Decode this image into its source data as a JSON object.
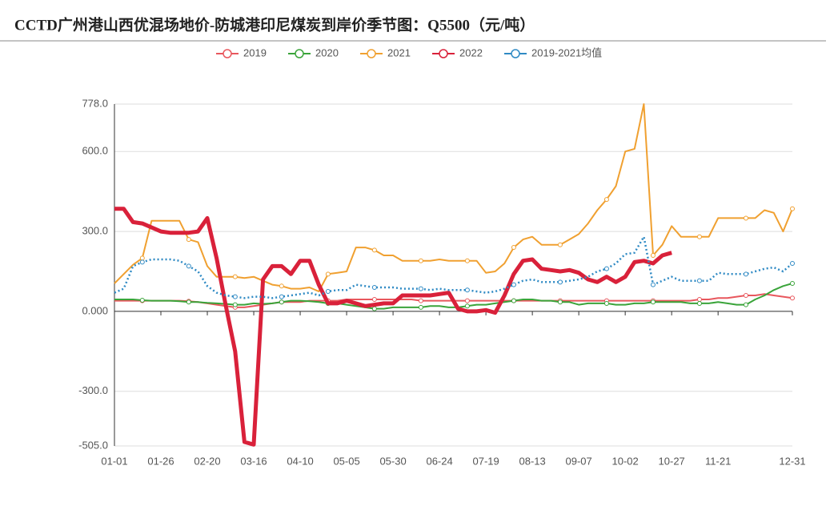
{
  "chart_data": {
    "type": "line",
    "title": "CCTD广州港山西优混场地价-防城港印尼煤炭到岸价季节图：Q5500（元/吨）",
    "categories": [
      "01-01",
      null,
      null,
      null,
      null,
      "01-26",
      null,
      null,
      null,
      null,
      "02-20",
      null,
      null,
      null,
      null,
      "03-16",
      null,
      null,
      null,
      null,
      "04-10",
      null,
      null,
      null,
      null,
      "05-05",
      null,
      null,
      null,
      null,
      "05-30",
      null,
      null,
      null,
      null,
      "06-24",
      null,
      null,
      null,
      null,
      "07-19",
      null,
      null,
      null,
      null,
      "08-13",
      null,
      null,
      null,
      null,
      "09-07",
      null,
      null,
      null,
      null,
      "10-02",
      null,
      null,
      null,
      null,
      "10-27",
      null,
      null,
      null,
      null,
      "11-21",
      null,
      null,
      null,
      null,
      null,
      null,
      null,
      "12-31"
    ],
    "ylim": [
      -505,
      778
    ],
    "yticks": [
      {
        "value": -505,
        "label": "-505.0"
      },
      {
        "value": -300,
        "label": "-300.0"
      },
      {
        "value": 0,
        "label": "0.000"
      },
      {
        "value": 300,
        "label": "300.0"
      },
      {
        "value": 600,
        "label": "600.0"
      },
      {
        "value": 778,
        "label": "778.0"
      }
    ],
    "grid": true,
    "legend": "top",
    "series": [
      {
        "name": "2019",
        "color": "#e8575d",
        "values": [
          40,
          40,
          40,
          40,
          40,
          40,
          40,
          40,
          38,
          35,
          30,
          25,
          20,
          15,
          15,
          20,
          25,
          30,
          35,
          35,
          35,
          40,
          40,
          40,
          40,
          45,
          45,
          45,
          45,
          45,
          45,
          45,
          45,
          40,
          40,
          40,
          40,
          40,
          40,
          40,
          40,
          40,
          40,
          40,
          40,
          40,
          40,
          40,
          40,
          40,
          40,
          40,
          40,
          40,
          40,
          40,
          40,
          40,
          40,
          40,
          40,
          40,
          40,
          45,
          45,
          50,
          50,
          55,
          60,
          60,
          65,
          60,
          55,
          50
        ]
      },
      {
        "name": "2020",
        "color": "#3aa43a",
        "values": [
          45,
          45,
          45,
          42,
          40,
          40,
          40,
          38,
          35,
          35,
          32,
          30,
          28,
          25,
          25,
          30,
          28,
          30,
          35,
          40,
          40,
          38,
          35,
          30,
          30,
          25,
          20,
          15,
          10,
          10,
          15,
          15,
          15,
          15,
          20,
          20,
          15,
          15,
          20,
          25,
          25,
          30,
          35,
          40,
          45,
          45,
          40,
          40,
          35,
          35,
          25,
          30,
          30,
          30,
          25,
          25,
          30,
          30,
          35,
          35,
          35,
          35,
          30,
          30,
          30,
          35,
          30,
          25,
          25,
          45,
          60,
          80,
          95,
          105
        ]
      },
      {
        "name": "2021",
        "color": "#f0a030",
        "values": [
          105,
          140,
          175,
          200,
          340,
          340,
          340,
          340,
          270,
          260,
          170,
          130,
          130,
          130,
          125,
          130,
          115,
          100,
          95,
          85,
          85,
          90,
          75,
          140,
          145,
          150,
          240,
          240,
          230,
          210,
          210,
          190,
          190,
          190,
          190,
          195,
          190,
          190,
          190,
          190,
          145,
          150,
          180,
          240,
          270,
          280,
          250,
          250,
          250,
          270,
          290,
          330,
          380,
          420,
          470,
          600,
          610,
          778,
          210,
          250,
          320,
          280,
          280,
          280,
          280,
          350,
          350,
          350,
          350,
          350,
          380,
          370,
          300,
          385
        ]
      },
      {
        "name": "2022",
        "color": "#d9213a",
        "bold": true,
        "values": [
          385,
          385,
          335,
          330,
          315,
          300,
          295,
          295,
          295,
          300,
          350,
          200,
          20,
          -150,
          -490,
          -500,
          120,
          170,
          170,
          140,
          190,
          190,
          100,
          30,
          30,
          40,
          30,
          20,
          25,
          30,
          30,
          60,
          60,
          60,
          60,
          65,
          70,
          10,
          0,
          0,
          5,
          -5,
          60,
          140,
          190,
          195,
          160,
          155,
          150,
          155,
          145,
          120,
          110,
          130,
          110,
          130,
          185,
          190,
          180,
          210,
          220,
          null,
          null,
          null,
          null,
          null,
          null,
          null,
          null,
          null,
          null,
          null,
          null,
          null
        ]
      },
      {
        "name": "2019-2021均值",
        "color": "#2f8ac4",
        "line_style": "dotted",
        "values": [
          70,
          85,
          170,
          185,
          195,
          195,
          195,
          190,
          170,
          150,
          95,
          70,
          60,
          55,
          50,
          55,
          55,
          50,
          55,
          60,
          65,
          70,
          60,
          75,
          80,
          80,
          100,
          95,
          90,
          90,
          90,
          85,
          85,
          85,
          80,
          85,
          80,
          80,
          80,
          75,
          70,
          75,
          85,
          100,
          115,
          120,
          110,
          110,
          110,
          115,
          120,
          130,
          150,
          160,
          180,
          215,
          220,
          280,
          100,
          115,
          130,
          115,
          115,
          115,
          115,
          145,
          140,
          140,
          140,
          150,
          160,
          165,
          150,
          180
        ]
      }
    ]
  }
}
